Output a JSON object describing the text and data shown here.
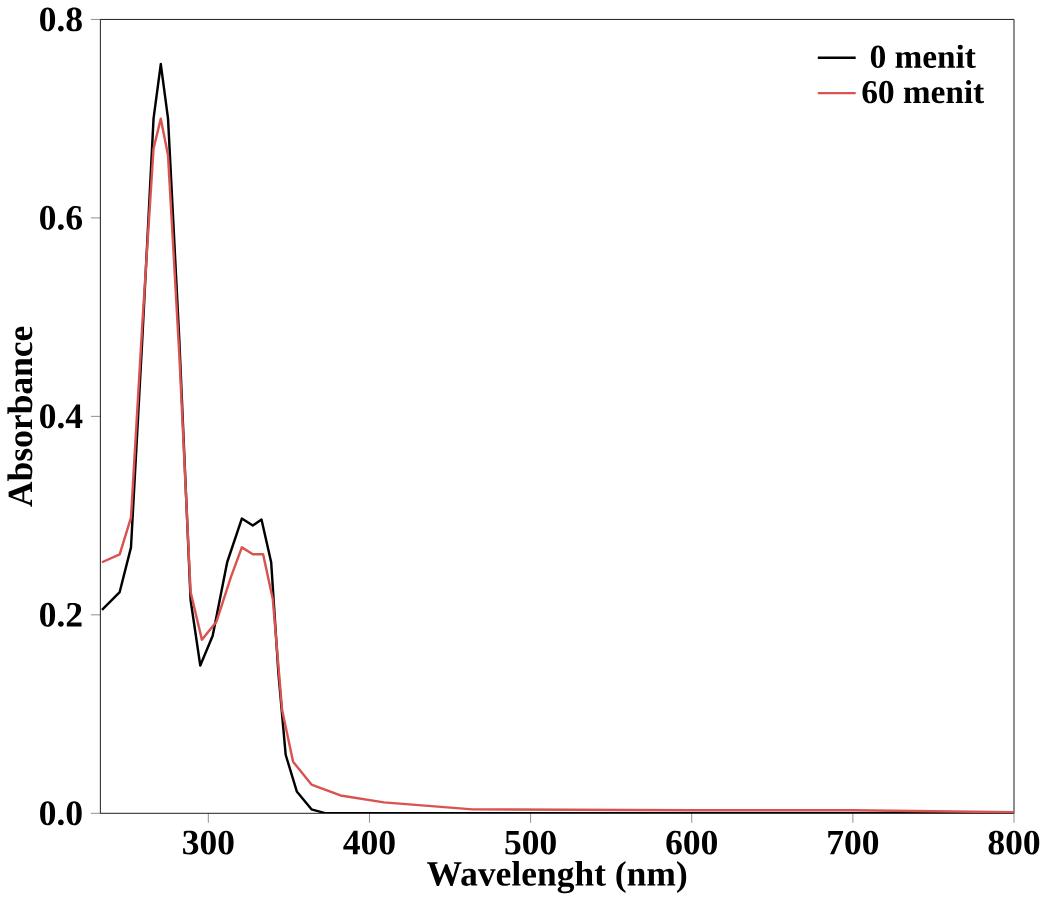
{
  "chart_data": {
    "type": "line",
    "xlabel": "Wavelenght (nm)",
    "ylabel": "Absorbance",
    "xlim": [
      233,
      800
    ],
    "ylim": [
      0,
      0.8
    ],
    "xticks": [
      300,
      400,
      500,
      600,
      700,
      800
    ],
    "yticks": [
      {
        "value": 0,
        "label": "0.0"
      },
      0.2,
      0.4,
      0.6,
      0.8
    ],
    "legend": "top right",
    "grid": false,
    "marker": "none",
    "line_style": "solid",
    "series": [
      {
        "name": "0 menit",
        "color": "#000000",
        "x": [
          234,
          245,
          252,
          259,
          266,
          270.5,
          275,
          282,
          289,
          295,
          302.7,
          311.7,
          320.8,
          327.6,
          333,
          339,
          343.5,
          348,
          354.9,
          364,
          373,
          450,
          600,
          800
        ],
        "values": [
          0.205,
          0.223,
          0.268,
          0.477,
          0.7,
          0.755,
          0.7,
          0.477,
          0.215,
          0.149,
          0.179,
          0.253,
          0.297,
          0.29,
          0.296,
          0.253,
          0.141,
          0.059,
          0.022,
          0.004,
          0.0,
          0.0,
          0.0,
          0.0
        ]
      },
      {
        "name": "60 menit",
        "color": "#d9534f",
        "x": [
          234,
          245,
          252,
          259,
          266,
          270.5,
          275,
          282,
          289,
          296,
          305,
          314,
          320.8,
          327.6,
          334,
          340,
          345.8,
          352.6,
          364,
          382,
          409,
          464,
          600,
          700,
          800
        ],
        "values": [
          0.253,
          0.261,
          0.298,
          0.492,
          0.67,
          0.7,
          0.663,
          0.462,
          0.223,
          0.175,
          0.193,
          0.238,
          0.268,
          0.261,
          0.261,
          0.216,
          0.104,
          0.052,
          0.029,
          0.018,
          0.011,
          0.004,
          0.003,
          0.003,
          0.001
        ]
      }
    ]
  }
}
